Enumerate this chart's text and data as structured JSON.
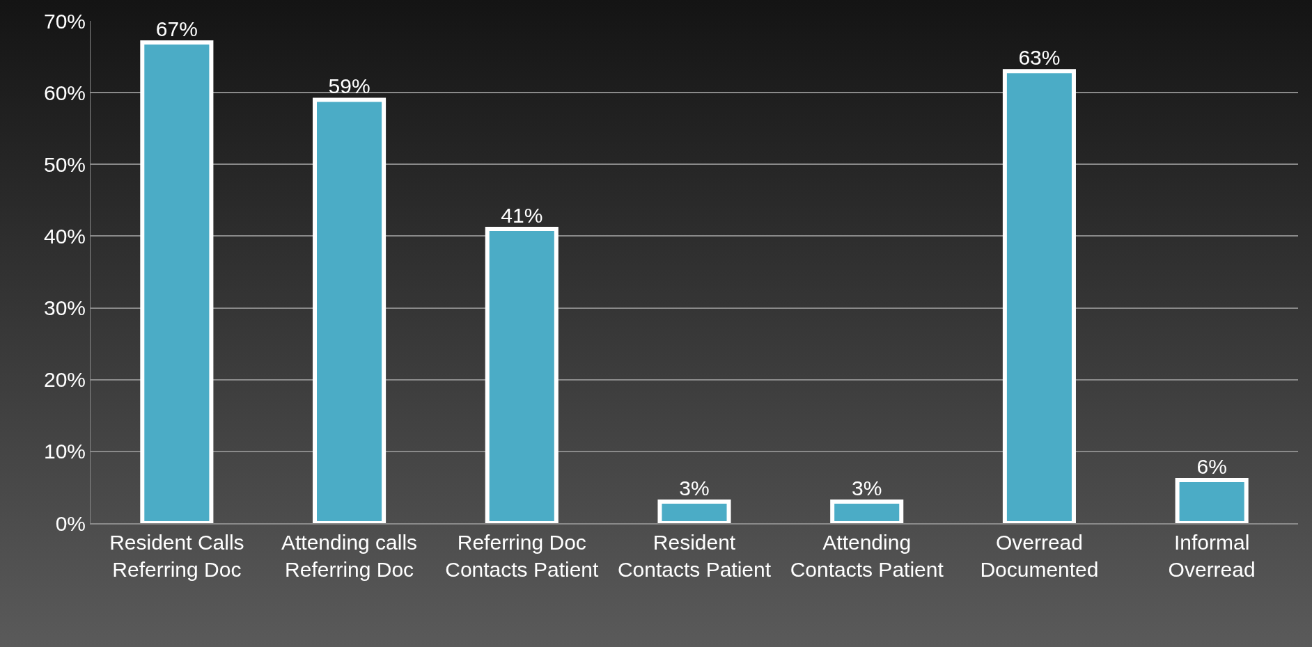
{
  "chart_data": {
    "type": "bar",
    "categories": [
      "Resident Calls Referring Doc",
      "Attending calls Referring Doc",
      "Referring Doc Contacts Patient",
      "Resident Contacts Patient",
      "Attending Contacts Patient",
      "Overread Documented",
      "Informal Overread"
    ],
    "values": [
      67,
      59,
      41,
      3,
      3,
      63,
      6
    ],
    "value_labels": [
      "67%",
      "59%",
      "41%",
      "3%",
      "3%",
      "63%",
      "6%"
    ],
    "color": "#4bacc6",
    "ylim": [
      0,
      70
    ],
    "yticks": [
      {
        "value": 0,
        "label": "0%"
      },
      {
        "value": 10,
        "label": "10%"
      },
      {
        "value": 20,
        "label": "20%"
      },
      {
        "value": 30,
        "label": "30%"
      },
      {
        "value": 40,
        "label": "40%"
      },
      {
        "value": 50,
        "label": "50%"
      },
      {
        "value": 60,
        "label": "60%"
      },
      {
        "value": 70,
        "label": "70%"
      }
    ],
    "grid": "y"
  }
}
